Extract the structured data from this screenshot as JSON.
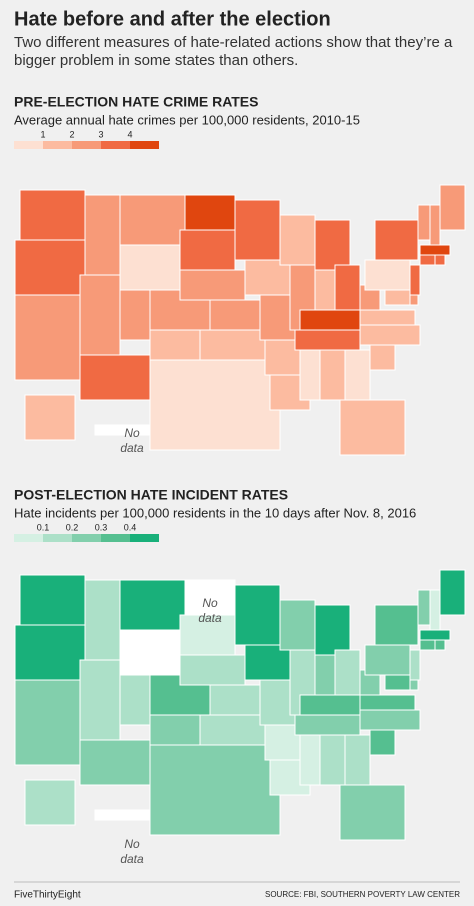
{
  "title": "Hate before and after the election",
  "subtitle": "Two different measures of hate-related actions show that they’re a bigger problem in some states than others.",
  "maps": [
    {
      "heading": "PRE-ELECTION HATE CRIME RATES",
      "subtitle": "Average annual hate crimes per 100,000 residents, 2010-15",
      "legend_ticks": [
        1,
        2,
        3,
        4
      ],
      "colors": [
        "#fde0d2",
        "#fcbba0",
        "#f79a78",
        "#f06a43",
        "#e0460f"
      ],
      "values": [
        3.5,
        3.3,
        2.8,
        2.5,
        2,
        2.5,
        0.5,
        2.5,
        3.2,
        2.5,
        1.5,
        4.3,
        3.6,
        2.5,
        2.6,
        1.5,
        0.8,
        3.2,
        1.2,
        2,
        1,
        1.5,
        1.5,
        2,
        3.4,
        1.5,
        3.3,
        4.5,
        3.2,
        0.5,
        1.5,
        0.5,
        1,
        1.5,
        1.5,
        1.5,
        2.5,
        0.8,
        3.4,
        2.5,
        2.5,
        2,
        4.6,
        3.3,
        3.3,
        3.6,
        2.5,
        1.5,
        1.5,
        null
      ],
      "no_data_labels": [
        "No data"
      ]
    },
    {
      "heading": "POST-ELECTION HATE INCIDENT RATES",
      "subtitle": "Hate incidents per 100,000 residents in the 10 days after Nov. 8, 2016",
      "legend_ticks": [
        0.1,
        0.2,
        0.3,
        0.4
      ],
      "colors": [
        "#d5f0e3",
        "#ace0c8",
        "#82cfac",
        "#55bf90",
        "#19b07a"
      ],
      "values": [
        0.45,
        0.45,
        0.25,
        0.15,
        0.15,
        0.45,
        null,
        0.15,
        0.25,
        0.35,
        0.25,
        null,
        0.05,
        0.15,
        0.15,
        0.15,
        0.25,
        0.45,
        0.45,
        0.15,
        0.05,
        0.05,
        0.25,
        0.15,
        0.45,
        0.25,
        0.15,
        0.35,
        0.25,
        0.05,
        0.15,
        0.15,
        0.25,
        0.3,
        0.25,
        0.35,
        0.25,
        0.25,
        0.3,
        0.25,
        0.05,
        0.45,
        0.45,
        0.3,
        0.3,
        0.15,
        0.25,
        0.35,
        0.15,
        null
      ],
      "no_data_labels": [
        "No data",
        "No data"
      ]
    }
  ],
  "footer": {
    "brand": "FiveThirtyEight",
    "source": "SOURCE: FBI, SOUTHERN POVERTY LAW CENTER"
  }
}
